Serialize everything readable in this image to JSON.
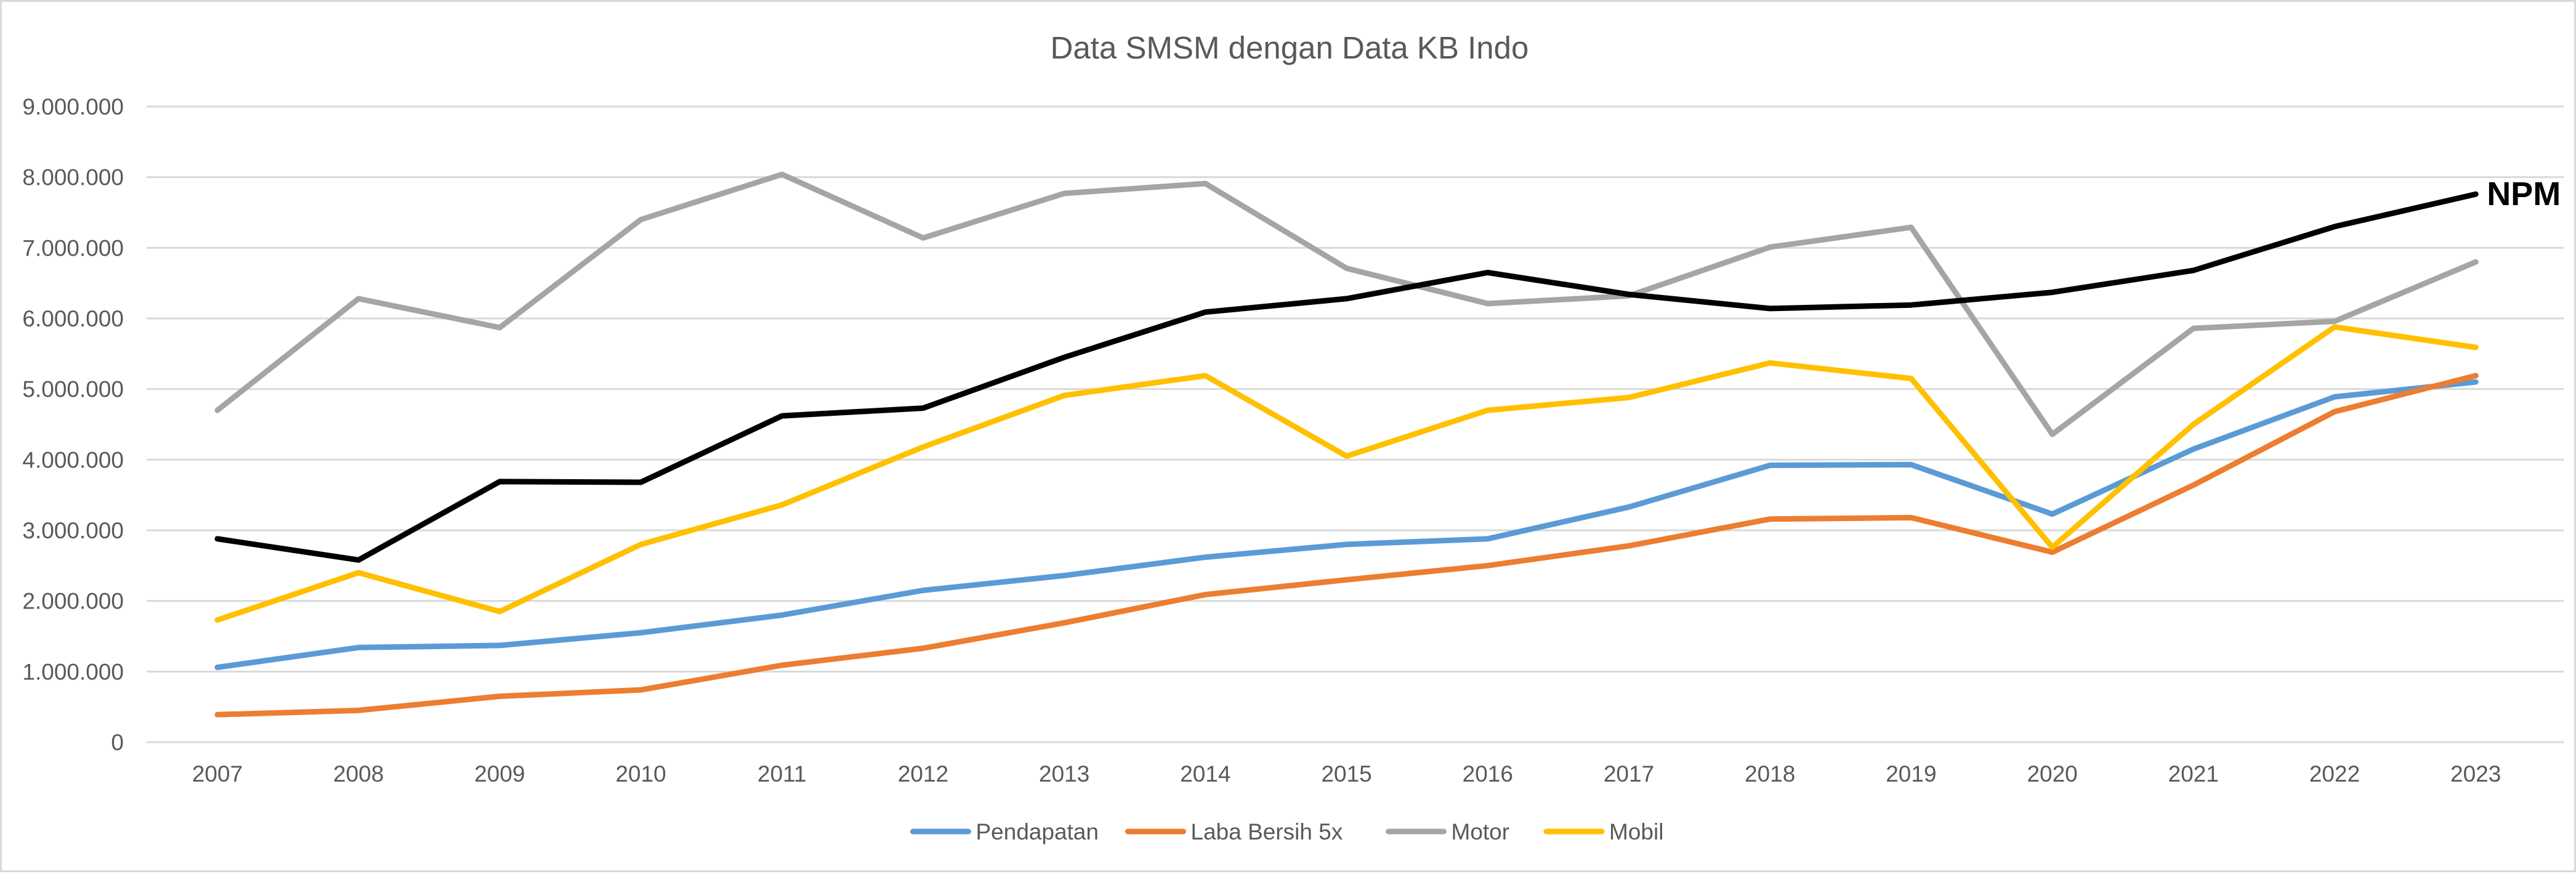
{
  "chart_data": {
    "type": "line",
    "title": "Data SMSM dengan Data KB Indo",
    "xlabel": "",
    "ylabel": "",
    "ylim": [
      0,
      9000000
    ],
    "yticks": [
      "0",
      "1.000.000",
      "2.000.000",
      "3.000.000",
      "4.000.000",
      "5.000.000",
      "6.000.000",
      "7.000.000",
      "8.000.000",
      "9.000.000"
    ],
    "ytick_values": [
      0,
      1000000,
      2000000,
      3000000,
      4000000,
      5000000,
      6000000,
      7000000,
      8000000,
      9000000
    ],
    "grid": true,
    "legend_position": "bottom",
    "categories": [
      "2007",
      "2008",
      "2009",
      "2010",
      "2011",
      "2012",
      "2013",
      "2014",
      "2015",
      "2016",
      "2017",
      "2018",
      "2019",
      "2020",
      "2021",
      "2022",
      "2023"
    ],
    "series": [
      {
        "name": "Pendapatan",
        "color": "#5b9bd5",
        "in_legend": true,
        "values": [
          1060000,
          1340000,
          1370000,
          1550000,
          1800000,
          2150000,
          2360000,
          2620000,
          2800000,
          2880000,
          3330000,
          3920000,
          3930000,
          3230000,
          4150000,
          4890000,
          5100000
        ]
      },
      {
        "name": "Laba Bersih 5x",
        "color": "#ed7d31",
        "in_legend": true,
        "values": [
          390000,
          450000,
          650000,
          740000,
          1090000,
          1330000,
          1690000,
          2090000,
          2300000,
          2500000,
          2780000,
          3160000,
          3180000,
          2690000,
          3640000,
          4680000,
          5190000
        ]
      },
      {
        "name": "Motor",
        "color": "#a5a5a5",
        "in_legend": true,
        "values": [
          4700000,
          6280000,
          5870000,
          7400000,
          8040000,
          7140000,
          7770000,
          7910000,
          6710000,
          6210000,
          6320000,
          7010000,
          7290000,
          4360000,
          5860000,
          5960000,
          6800000
        ]
      },
      {
        "name": "Mobil",
        "color": "#ffc000",
        "in_legend": true,
        "values": [
          1730000,
          2400000,
          1850000,
          2800000,
          3360000,
          4180000,
          4910000,
          5190000,
          4050000,
          4700000,
          4880000,
          5370000,
          5150000,
          2760000,
          4500000,
          5880000,
          5590000
        ]
      },
      {
        "name": "NPM",
        "color": "#000000",
        "in_legend": false,
        "values": [
          2880000,
          2580000,
          3690000,
          3680000,
          4620000,
          4730000,
          5450000,
          6090000,
          6280000,
          6650000,
          6340000,
          6140000,
          6190000,
          6370000,
          6680000,
          7300000,
          7760000
        ]
      }
    ],
    "annotations": [
      {
        "text": "NPM",
        "series": "NPM",
        "anchor": "last-point"
      }
    ]
  }
}
